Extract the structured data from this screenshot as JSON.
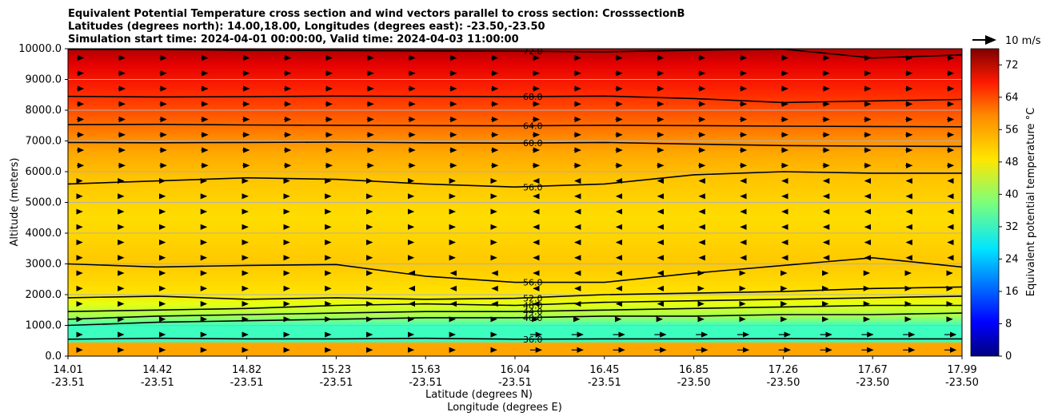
{
  "chart_data": {
    "type": "contour-filled-cross-section",
    "title_lines": [
      "Equivalent Potential Temperature cross section and wind vectors parallel to cross section: CrosssectionB",
      "Latitudes (degrees north): 14.00,18.00, Longitudes (degrees east): -23.50,-23.50",
      "Simulation start time: 2024-04-01 00:00:00, Valid time: 2024-04-03 11:00:00"
    ],
    "ylabel": "Altitude (meters)",
    "xlabel_lat": "Latitude (degrees N)",
    "xlabel_lon": "Longitude (degrees E)",
    "ylim": [
      0,
      10000
    ],
    "y_ticks": [
      "0.0",
      "1000.0",
      "2000.0",
      "3000.0",
      "4000.0",
      "5000.0",
      "6000.0",
      "7000.0",
      "8000.0",
      "9000.0",
      "10000.0"
    ],
    "x_ticks": [
      {
        "lat": "14.01",
        "lon": "-23.51"
      },
      {
        "lat": "14.42",
        "lon": "-23.51"
      },
      {
        "lat": "14.82",
        "lon": "-23.51"
      },
      {
        "lat": "15.23",
        "lon": "-23.51"
      },
      {
        "lat": "15.63",
        "lon": "-23.51"
      },
      {
        "lat": "16.04",
        "lon": "-23.51"
      },
      {
        "lat": "16.45",
        "lon": "-23.51"
      },
      {
        "lat": "16.85",
        "lon": "-23.50"
      },
      {
        "lat": "17.26",
        "lon": "-23.50"
      },
      {
        "lat": "17.67",
        "lon": "-23.50"
      },
      {
        "lat": "17.99",
        "lon": "-23.50"
      }
    ],
    "colorbar": {
      "label": "Equivalent potential temperature $^\\circ$C",
      "label_display": "Equivalent potential temperature °C",
      "range": [
        0,
        76
      ],
      "ticks": [
        "0",
        "8",
        "16",
        "24",
        "32",
        "40",
        "48",
        "56",
        "64",
        "72"
      ],
      "colormap": "jet"
    },
    "quiver_key": "10 m/s",
    "contour_levels": [
      "36.0",
      "40.0",
      "44.0",
      "48.0",
      "52.0",
      "56.0",
      "60.0",
      "64.0",
      "68.0",
      "72.0"
    ],
    "grid": "horizontal lines at y ticks",
    "contours": [
      {
        "label": "72.0",
        "alt": [
          9980,
          9980,
          9950,
          9940,
          9930,
          9920,
          9900,
          9950,
          9990,
          9700,
          9800
        ]
      },
      {
        "label": "68.0",
        "alt": [
          8450,
          8430,
          8440,
          8460,
          8450,
          8440,
          8460,
          8380,
          8250,
          8300,
          8350
        ]
      },
      {
        "label": "64.0",
        "alt": [
          7530,
          7540,
          7520,
          7510,
          7500,
          7490,
          7510,
          7500,
          7480,
          7470,
          7460
        ]
      },
      {
        "label": "60.0",
        "alt": [
          6950,
          6940,
          6950,
          6960,
          6940,
          6930,
          6950,
          6900,
          6850,
          6830,
          6820
        ]
      },
      {
        "label": "56.0",
        "alt": [
          5600,
          5700,
          5800,
          5750,
          5600,
          5500,
          5600,
          5900,
          6000,
          5950,
          5950
        ]
      },
      {
        "label": "56.0",
        "alt": [
          3000,
          2900,
          2950,
          2980,
          2600,
          2400,
          2400,
          2700,
          2950,
          3200,
          2900
        ]
      },
      {
        "label": "52.0",
        "alt": [
          1900,
          1950,
          1850,
          1900,
          1850,
          1880,
          2000,
          2050,
          2100,
          2200,
          2250
        ]
      },
      {
        "label": "48.0",
        "alt": [
          1450,
          1500,
          1550,
          1650,
          1700,
          1650,
          1750,
          1800,
          1850,
          1900,
          1950
        ]
      },
      {
        "label": "44.0",
        "alt": [
          1200,
          1300,
          1350,
          1400,
          1450,
          1450,
          1500,
          1550,
          1600,
          1650,
          1650
        ]
      },
      {
        "label": "40.0",
        "alt": [
          1000,
          1100,
          1150,
          1200,
          1250,
          1250,
          1300,
          1300,
          1350,
          1350,
          1400
        ]
      },
      {
        "label": "36.0",
        "alt": [
          550,
          580,
          560,
          560,
          580,
          550,
          560,
          560,
          570,
          560,
          560
        ]
      }
    ]
  }
}
